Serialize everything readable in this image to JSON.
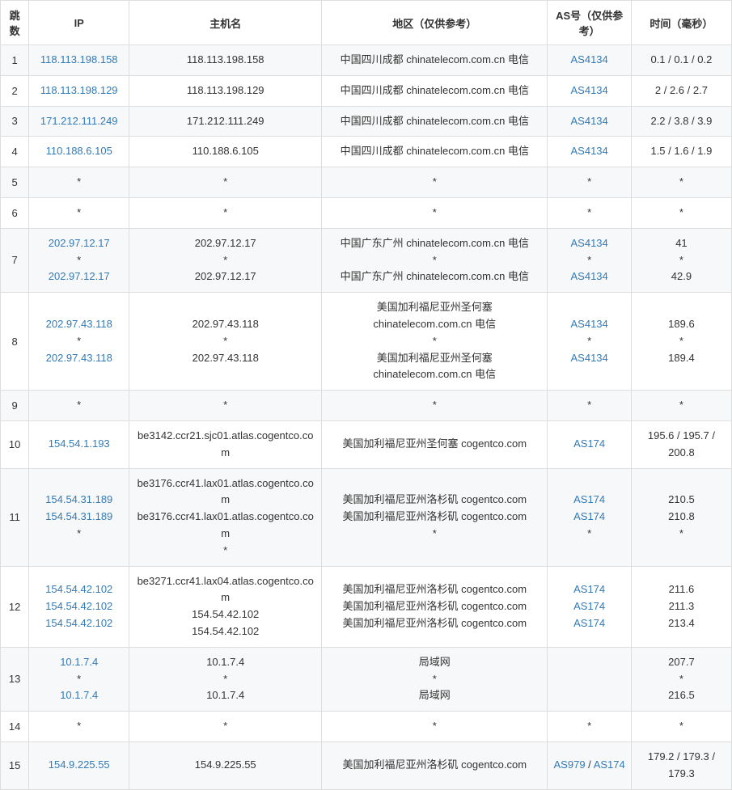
{
  "table": {
    "headers": {
      "hop": "跳数",
      "ip": "IP",
      "host": "主机名",
      "location": "地区（仅供参考）",
      "asn": "AS号（仅供参考）",
      "time": "时间（毫秒）"
    },
    "link_color": "#337ab7",
    "text_color": "#333333",
    "border_color": "#dddddd",
    "alt_row_bg": "#f7f8f9",
    "rows": [
      {
        "hop": "1",
        "ip": [
          {
            "text": "118.113.198.158",
            "link": true
          }
        ],
        "host": [
          {
            "text": "118.113.198.158"
          }
        ],
        "location": [
          {
            "text": "中国四川成都 chinatelecom.com.cn 电信"
          }
        ],
        "asn": [
          {
            "text": "AS4134",
            "link": true
          }
        ],
        "time": [
          {
            "text": "0.1 / 0.1 / 0.2"
          }
        ]
      },
      {
        "hop": "2",
        "ip": [
          {
            "text": "118.113.198.129",
            "link": true
          }
        ],
        "host": [
          {
            "text": "118.113.198.129"
          }
        ],
        "location": [
          {
            "text": "中国四川成都 chinatelecom.com.cn 电信"
          }
        ],
        "asn": [
          {
            "text": "AS4134",
            "link": true
          }
        ],
        "time": [
          {
            "text": "2 / 2.6 / 2.7"
          }
        ]
      },
      {
        "hop": "3",
        "ip": [
          {
            "text": "171.212.111.249",
            "link": true
          }
        ],
        "host": [
          {
            "text": "171.212.111.249"
          }
        ],
        "location": [
          {
            "text": "中国四川成都 chinatelecom.com.cn 电信"
          }
        ],
        "asn": [
          {
            "text": "AS4134",
            "link": true
          }
        ],
        "time": [
          {
            "text": "2.2 / 3.8 / 3.9"
          }
        ]
      },
      {
        "hop": "4",
        "ip": [
          {
            "text": "110.188.6.105",
            "link": true
          }
        ],
        "host": [
          {
            "text": "110.188.6.105"
          }
        ],
        "location": [
          {
            "text": "中国四川成都 chinatelecom.com.cn 电信"
          }
        ],
        "asn": [
          {
            "text": "AS4134",
            "link": true
          }
        ],
        "time": [
          {
            "text": "1.5 / 1.6 / 1.9"
          }
        ]
      },
      {
        "hop": "5",
        "ip": [
          {
            "text": "*"
          }
        ],
        "host": [
          {
            "text": "*"
          }
        ],
        "location": [
          {
            "text": "*"
          }
        ],
        "asn": [
          {
            "text": "*"
          }
        ],
        "time": [
          {
            "text": "*"
          }
        ]
      },
      {
        "hop": "6",
        "ip": [
          {
            "text": "*"
          }
        ],
        "host": [
          {
            "text": "*"
          }
        ],
        "location": [
          {
            "text": "*"
          }
        ],
        "asn": [
          {
            "text": "*"
          }
        ],
        "time": [
          {
            "text": "*"
          }
        ]
      },
      {
        "hop": "7",
        "ip": [
          {
            "text": "202.97.12.17",
            "link": true
          },
          {
            "text": "*"
          },
          {
            "text": "202.97.12.17",
            "link": true
          }
        ],
        "host": [
          {
            "text": "202.97.12.17"
          },
          {
            "text": "*"
          },
          {
            "text": "202.97.12.17"
          }
        ],
        "location": [
          {
            "text": "中国广东广州 chinatelecom.com.cn 电信"
          },
          {
            "text": "*"
          },
          {
            "text": "中国广东广州 chinatelecom.com.cn 电信"
          }
        ],
        "asn": [
          {
            "text": "AS4134",
            "link": true
          },
          {
            "text": "*"
          },
          {
            "text": "AS4134",
            "link": true
          }
        ],
        "time": [
          {
            "text": "41"
          },
          {
            "text": "*"
          },
          {
            "text": "42.9"
          }
        ]
      },
      {
        "hop": "8",
        "ip": [
          {
            "text": "202.97.43.118",
            "link": true
          },
          {
            "text": "*"
          },
          {
            "text": "202.97.43.118",
            "link": true
          }
        ],
        "host": [
          {
            "text": "202.97.43.118"
          },
          {
            "text": "*"
          },
          {
            "text": "202.97.43.118"
          }
        ],
        "location": [
          {
            "text": "美国加利福尼亚州圣何塞 chinatelecom.com.cn 电信"
          },
          {
            "text": "*"
          },
          {
            "text": "美国加利福尼亚州圣何塞 chinatelecom.com.cn 电信"
          }
        ],
        "asn": [
          {
            "text": "AS4134",
            "link": true
          },
          {
            "text": "*"
          },
          {
            "text": "AS4134",
            "link": true
          }
        ],
        "time": [
          {
            "text": "189.6"
          },
          {
            "text": "*"
          },
          {
            "text": "189.4"
          }
        ]
      },
      {
        "hop": "9",
        "ip": [
          {
            "text": "*"
          }
        ],
        "host": [
          {
            "text": "*"
          }
        ],
        "location": [
          {
            "text": "*"
          }
        ],
        "asn": [
          {
            "text": "*"
          }
        ],
        "time": [
          {
            "text": "*"
          }
        ]
      },
      {
        "hop": "10",
        "ip": [
          {
            "text": "154.54.1.193",
            "link": true
          }
        ],
        "host": [
          {
            "text": "be3142.ccr21.sjc01.atlas.cogentco.com"
          }
        ],
        "location": [
          {
            "text": "美国加利福尼亚州圣何塞 cogentco.com"
          }
        ],
        "asn": [
          {
            "text": "AS174",
            "link": true
          }
        ],
        "time": [
          {
            "text": "195.6 / 195.7 / 200.8"
          }
        ]
      },
      {
        "hop": "11",
        "ip": [
          {
            "text": "154.54.31.189",
            "link": true
          },
          {
            "text": "154.54.31.189",
            "link": true
          },
          {
            "text": "*"
          }
        ],
        "host": [
          {
            "text": "be3176.ccr41.lax01.atlas.cogentco.com"
          },
          {
            "text": "be3176.ccr41.lax01.atlas.cogentco.com"
          },
          {
            "text": "*"
          }
        ],
        "location": [
          {
            "text": "美国加利福尼亚州洛杉矶 cogentco.com"
          },
          {
            "text": "美国加利福尼亚州洛杉矶 cogentco.com"
          },
          {
            "text": "*"
          }
        ],
        "asn": [
          {
            "text": "AS174",
            "link": true
          },
          {
            "text": "AS174",
            "link": true
          },
          {
            "text": "*"
          }
        ],
        "time": [
          {
            "text": "210.5"
          },
          {
            "text": "210.8"
          },
          {
            "text": "*"
          }
        ]
      },
      {
        "hop": "12",
        "ip": [
          {
            "text": "154.54.42.102",
            "link": true
          },
          {
            "text": "154.54.42.102",
            "link": true
          },
          {
            "text": "154.54.42.102",
            "link": true
          }
        ],
        "host": [
          {
            "text": "be3271.ccr41.lax04.atlas.cogentco.com"
          },
          {
            "text": "154.54.42.102"
          },
          {
            "text": "154.54.42.102"
          }
        ],
        "location": [
          {
            "text": "美国加利福尼亚州洛杉矶 cogentco.com"
          },
          {
            "text": "美国加利福尼亚州洛杉矶 cogentco.com"
          },
          {
            "text": "美国加利福尼亚州洛杉矶 cogentco.com"
          }
        ],
        "asn": [
          {
            "text": "AS174",
            "link": true
          },
          {
            "text": "AS174",
            "link": true
          },
          {
            "text": "AS174",
            "link": true
          }
        ],
        "time": [
          {
            "text": "211.6"
          },
          {
            "text": "211.3"
          },
          {
            "text": "213.4"
          }
        ]
      },
      {
        "hop": "13",
        "ip": [
          {
            "text": "10.1.7.4",
            "link": true
          },
          {
            "text": "*"
          },
          {
            "text": "10.1.7.4",
            "link": true
          }
        ],
        "host": [
          {
            "text": "10.1.7.4"
          },
          {
            "text": "*"
          },
          {
            "text": "10.1.7.4"
          }
        ],
        "location": [
          {
            "text": "局域网"
          },
          {
            "text": "*"
          },
          {
            "text": "局域网"
          }
        ],
        "asn": [
          {
            "text": ""
          },
          {
            "text": ""
          },
          {
            "text": ""
          }
        ],
        "time": [
          {
            "text": "207.7"
          },
          {
            "text": "*"
          },
          {
            "text": "216.5"
          }
        ]
      },
      {
        "hop": "14",
        "ip": [
          {
            "text": "*"
          }
        ],
        "host": [
          {
            "text": "*"
          }
        ],
        "location": [
          {
            "text": "*"
          }
        ],
        "asn": [
          {
            "text": "*"
          }
        ],
        "time": [
          {
            "text": "*"
          }
        ]
      },
      {
        "hop": "15",
        "ip": [
          {
            "text": "154.9.225.55",
            "link": true
          }
        ],
        "host": [
          {
            "text": "154.9.225.55"
          }
        ],
        "location": [
          {
            "text": "美国加利福尼亚州洛杉矶 cogentco.com"
          }
        ],
        "asn": [
          {
            "text": "AS979 / AS174",
            "link": true,
            "split": [
              "AS979",
              "AS174"
            ],
            "sep": " / "
          }
        ],
        "time": [
          {
            "text": "179.2 / 179.3 / 179.3"
          }
        ]
      }
    ]
  }
}
